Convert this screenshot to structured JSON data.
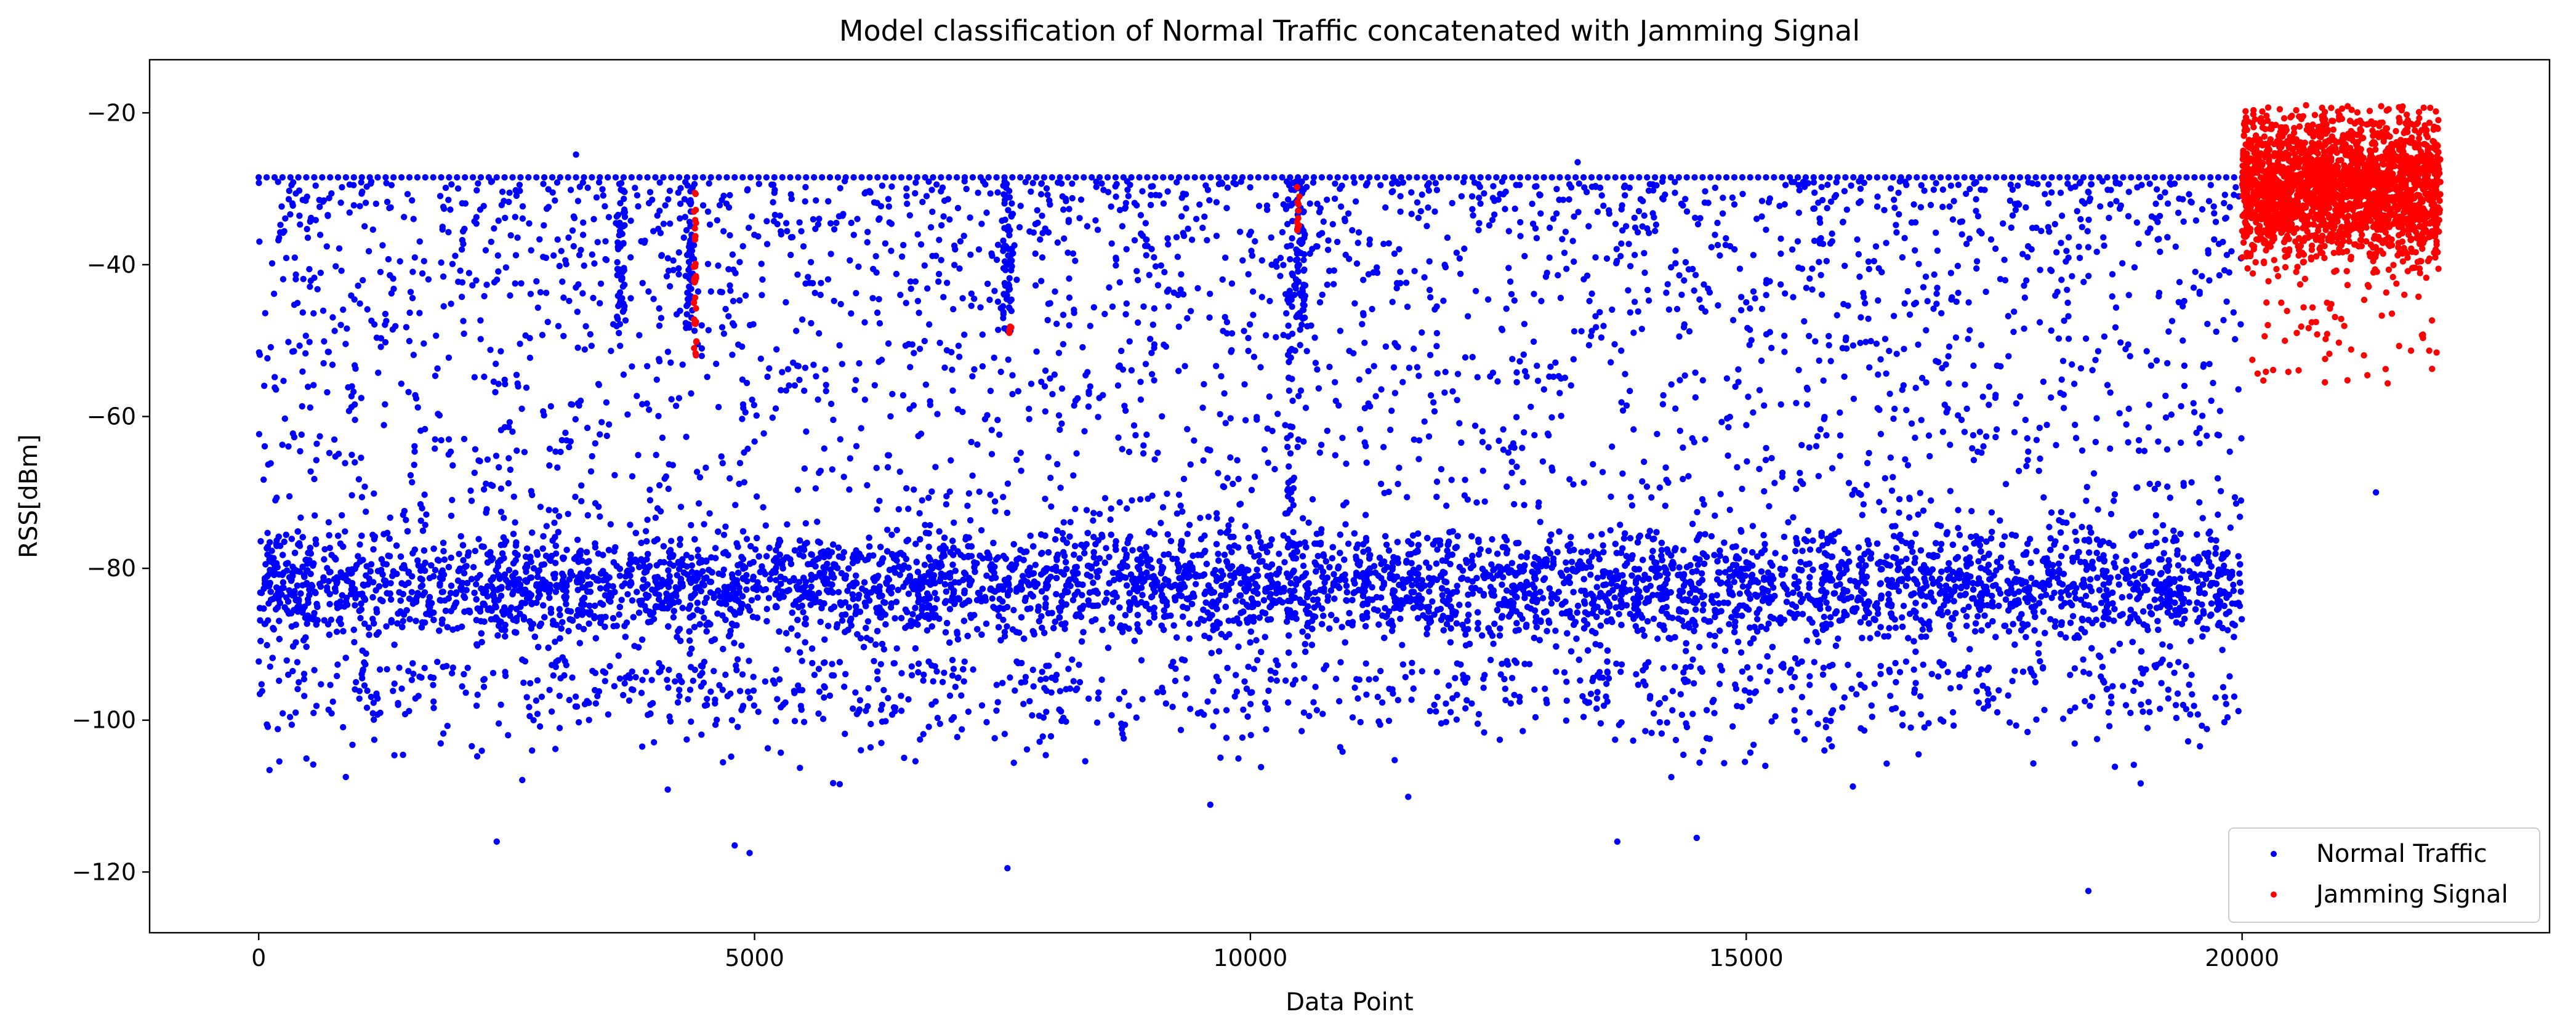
{
  "chart_data": {
    "type": "scatter",
    "title": "Model classification of Normal Traffic concatenated with Jamming Signal",
    "xlabel": "Data Point",
    "ylabel": "RSS[dBm]",
    "xlim": [
      -1100,
      23100
    ],
    "ylim": [
      -128,
      -13
    ],
    "xticks": [
      0,
      5000,
      10000,
      15000,
      20000
    ],
    "xtick_labels": [
      "0",
      "5000",
      "10000",
      "15000",
      "20000"
    ],
    "yticks": [
      -120,
      -100,
      -80,
      -60,
      -40,
      -20
    ],
    "ytick_labels": [
      "−120",
      "−100",
      "−80",
      "−60",
      "−40",
      "−20"
    ],
    "grid": false,
    "legend_position": "lower-right",
    "series": [
      {
        "name": "Normal Traffic",
        "color": "#0000ff",
        "x_range": [
          0,
          20000
        ],
        "points_approx": 20000,
        "description_of_distribution": {
          "dense_band": {
            "center": -82.5,
            "spread_min": -92,
            "spread_max": -75
          },
          "ceiling_line": -28.5,
          "scattered_region": {
            "min": -75,
            "max": -28
          },
          "notable_outliers": [
            {
              "x": 2400,
              "y": -116
            },
            {
              "x": 4800,
              "y": -116.5
            },
            {
              "x": 4950,
              "y": -117.5
            },
            {
              "x": 7550,
              "y": -119.5
            },
            {
              "x": 13700,
              "y": -116
            },
            {
              "x": 14500,
              "y": -115.5
            },
            {
              "x": 18450,
              "y": -122.5
            },
            {
              "x": 21350,
              "y": -70
            },
            {
              "x": 3200,
              "y": -25.5
            },
            {
              "x": 13300,
              "y": -26.5
            }
          ]
        }
      },
      {
        "name": "Jamming Signal",
        "color": "#ff0000",
        "x_range": [
          20000,
          22000
        ],
        "points_approx": 2000,
        "description_of_distribution": {
          "center": -30,
          "min": -56,
          "max": -18.5,
          "misclassified_clusters": [
            {
              "x": 4400,
              "y_min": -53,
              "y_max": -29
            },
            {
              "x": 7580,
              "y_min": -49,
              "y_max": -48
            },
            {
              "x": 10480,
              "y_min": -37,
              "y_max": -29.5
            }
          ]
        }
      }
    ],
    "legend": [
      "Normal Traffic",
      "Jamming Signal"
    ]
  }
}
